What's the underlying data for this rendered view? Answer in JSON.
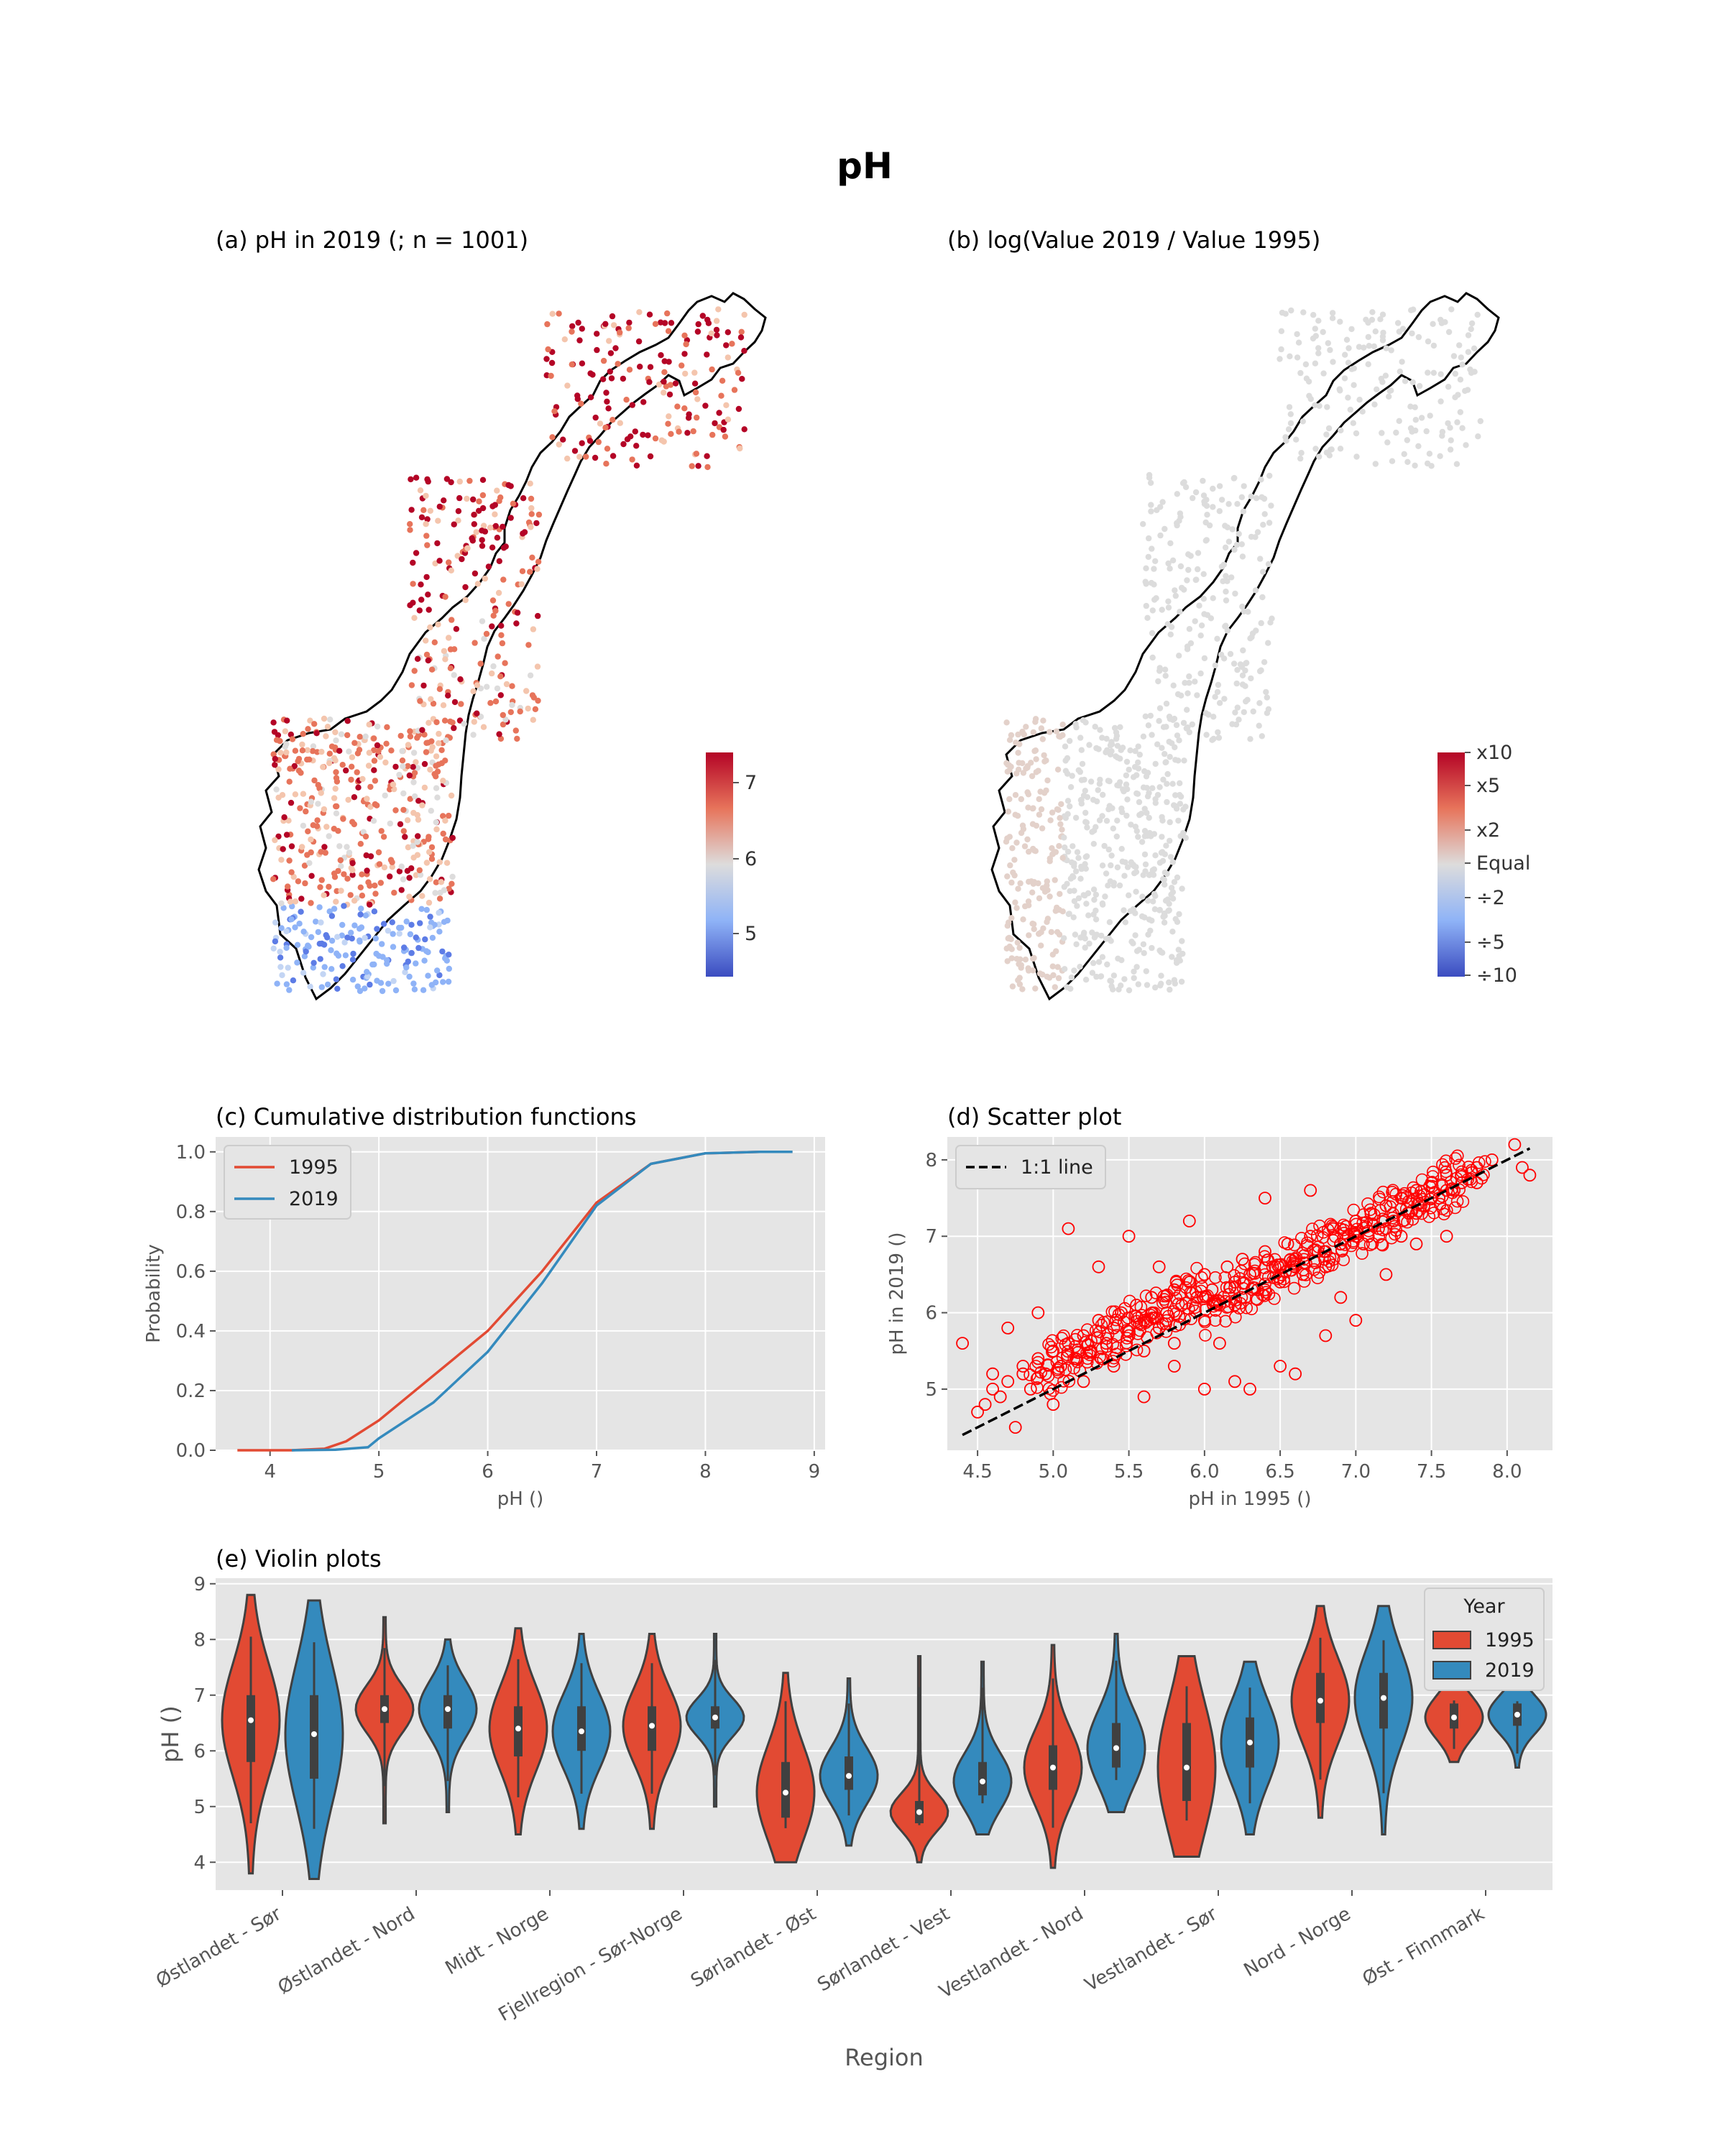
{
  "figure": {
    "title": "pH"
  },
  "panel_a": {
    "title": "(a) pH in 2019 (; n = 1001)",
    "colorbar": {
      "ticks": [
        "7",
        "6",
        "5"
      ],
      "range": [
        4.4,
        7.4
      ]
    }
  },
  "panel_b": {
    "title": "(b) log(Value 2019 / Value 1995)",
    "colorbar": {
      "ticks": [
        "x10",
        "x5",
        "x2",
        "Equal",
        "÷2",
        "÷5",
        "÷10"
      ]
    }
  },
  "chart_data": [
    {
      "id": "c",
      "type": "line",
      "title": "(c) Cumulative distribution functions",
      "xlabel": "pH ()",
      "ylabel": "Probability",
      "xlim": [
        3.5,
        9.1
      ],
      "ylim": [
        0.0,
        1.05
      ],
      "xticks": [
        "4",
        "5",
        "6",
        "7",
        "8",
        "9"
      ],
      "yticks": [
        "0.0",
        "0.2",
        "0.4",
        "0.6",
        "0.8",
        "1.0"
      ],
      "legend": {
        "position": "top-left",
        "entries": [
          "1995",
          "2019"
        ]
      },
      "series": [
        {
          "name": "1995",
          "color": "#e24a33",
          "x": [
            3.7,
            4.2,
            4.5,
            4.7,
            5.0,
            5.5,
            6.0,
            6.5,
            7.0,
            7.5,
            8.0,
            8.5,
            8.8
          ],
          "y": [
            0.0,
            0.0,
            0.005,
            0.03,
            0.1,
            0.25,
            0.4,
            0.6,
            0.83,
            0.96,
            0.995,
            1.0,
            1.0
          ]
        },
        {
          "name": "2019",
          "color": "#348abd",
          "x": [
            4.2,
            4.6,
            4.9,
            5.0,
            5.5,
            6.0,
            6.5,
            7.0,
            7.5,
            8.0,
            8.5,
            8.8
          ],
          "y": [
            0.0,
            0.002,
            0.01,
            0.04,
            0.16,
            0.33,
            0.56,
            0.82,
            0.96,
            0.995,
            1.0,
            1.0
          ]
        }
      ]
    },
    {
      "id": "d",
      "type": "scatter",
      "title": "(d) Scatter plot",
      "xlabel": "pH in 1995 ()",
      "ylabel": "pH in 2019 ()",
      "xlim": [
        4.3,
        8.3
      ],
      "ylim": [
        4.2,
        8.3
      ],
      "xticks": [
        "4.5",
        "5.0",
        "5.5",
        "6.0",
        "6.5",
        "7.0",
        "7.5",
        "8.0"
      ],
      "yticks": [
        "5",
        "6",
        "7",
        "8"
      ],
      "legend": {
        "position": "top-left",
        "entries": [
          "1:1 line"
        ]
      },
      "line_1to1": [
        4.4,
        8.15
      ],
      "point_color": "#ff0000",
      "points": [
        [
          4.4,
          5.6
        ],
        [
          4.5,
          4.7
        ],
        [
          4.55,
          4.8
        ],
        [
          4.6,
          5.2
        ],
        [
          4.65,
          4.9
        ],
        [
          4.7,
          5.1
        ],
        [
          4.75,
          4.5
        ],
        [
          4.8,
          5.3
        ],
        [
          4.85,
          5.0
        ],
        [
          4.9,
          5.4
        ],
        [
          4.95,
          5.2
        ],
        [
          5.0,
          5.5
        ],
        [
          5.0,
          4.8
        ],
        [
          5.05,
          5.3
        ],
        [
          5.1,
          5.6
        ],
        [
          5.15,
          5.4
        ],
        [
          5.2,
          5.7
        ],
        [
          5.25,
          5.5
        ],
        [
          5.3,
          5.9
        ],
        [
          5.35,
          5.6
        ],
        [
          5.4,
          5.8
        ],
        [
          5.45,
          6.0
        ],
        [
          5.5,
          5.7
        ],
        [
          5.55,
          6.1
        ],
        [
          5.6,
          5.9
        ],
        [
          5.65,
          6.2
        ],
        [
          5.7,
          5.8
        ],
        [
          5.75,
          6.0
        ],
        [
          5.8,
          6.3
        ],
        [
          5.85,
          6.1
        ],
        [
          5.9,
          6.4
        ],
        [
          5.95,
          6.2
        ],
        [
          6.0,
          6.5
        ],
        [
          6.05,
          6.3
        ],
        [
          6.1,
          6.1
        ],
        [
          6.15,
          6.6
        ],
        [
          6.2,
          6.4
        ],
        [
          6.25,
          6.7
        ],
        [
          6.3,
          6.5
        ],
        [
          6.35,
          6.3
        ],
        [
          6.4,
          6.8
        ],
        [
          6.45,
          6.6
        ],
        [
          6.5,
          6.4
        ],
        [
          6.55,
          6.9
        ],
        [
          6.6,
          6.7
        ],
        [
          6.65,
          6.5
        ],
        [
          6.7,
          7.0
        ],
        [
          6.75,
          6.8
        ],
        [
          6.8,
          6.6
        ],
        [
          6.85,
          7.1
        ],
        [
          6.9,
          6.9
        ],
        [
          6.95,
          7.0
        ],
        [
          7.0,
          7.2
        ],
        [
          7.05,
          6.9
        ],
        [
          7.1,
          7.3
        ],
        [
          7.15,
          7.1
        ],
        [
          7.2,
          7.4
        ],
        [
          7.25,
          7.2
        ],
        [
          7.3,
          7.5
        ],
        [
          7.35,
          7.3
        ],
        [
          7.4,
          7.6
        ],
        [
          7.45,
          7.4
        ],
        [
          7.5,
          7.7
        ],
        [
          7.55,
          7.5
        ],
        [
          7.6,
          7.8
        ],
        [
          7.65,
          7.6
        ],
        [
          7.7,
          7.7
        ],
        [
          7.8,
          7.9
        ],
        [
          7.9,
          8.0
        ],
        [
          8.05,
          8.2
        ],
        [
          8.1,
          7.9
        ],
        [
          8.15,
          7.8
        ],
        [
          5.1,
          7.1
        ],
        [
          5.5,
          7.0
        ],
        [
          5.7,
          6.6
        ],
        [
          6.0,
          5.0
        ],
        [
          6.2,
          5.1
        ],
        [
          6.3,
          5.0
        ],
        [
          6.5,
          5.3
        ],
        [
          6.8,
          5.7
        ],
        [
          7.0,
          5.9
        ],
        [
          6.6,
          5.2
        ],
        [
          5.9,
          7.2
        ],
        [
          6.4,
          7.5
        ],
        [
          4.7,
          5.8
        ],
        [
          4.9,
          6.0
        ],
        [
          5.6,
          4.9
        ],
        [
          5.3,
          6.6
        ],
        [
          6.7,
          7.6
        ],
        [
          7.2,
          6.5
        ],
        [
          7.4,
          6.9
        ],
        [
          7.6,
          7.0
        ],
        [
          5.8,
          5.3
        ],
        [
          6.1,
          5.6
        ],
        [
          6.9,
          6.2
        ],
        [
          7.3,
          7.0
        ],
        [
          4.6,
          5.0
        ],
        [
          4.8,
          5.2
        ],
        [
          5.2,
          5.1
        ],
        [
          5.4,
          5.3
        ],
        [
          5.6,
          5.5
        ],
        [
          5.8,
          5.6
        ],
        [
          6.0,
          5.9
        ],
        [
          6.2,
          6.1
        ],
        [
          6.4,
          6.3
        ],
        [
          6.6,
          6.6
        ],
        [
          6.8,
          6.8
        ],
        [
          7.0,
          7.0
        ],
        [
          7.2,
          7.1
        ],
        [
          7.4,
          7.3
        ],
        [
          7.6,
          7.6
        ],
        [
          7.8,
          7.7
        ]
      ]
    },
    {
      "id": "e",
      "type": "violin",
      "title": "(e) Violin plots",
      "xlabel": "Region",
      "ylabel": "pH ()",
      "ylim": [
        3.5,
        9.1
      ],
      "yticks": [
        "4",
        "5",
        "6",
        "7",
        "8",
        "9"
      ],
      "legend": {
        "position": "top-right",
        "title": "Year",
        "entries": [
          "1995",
          "2019"
        ]
      },
      "categories": [
        "Østlandet - Sør",
        "Østlandet - Nord",
        "Midt - Norge",
        "Fjellregion - Sør-Norge",
        "Sørlandet - Øst",
        "Sørlandet - Vest",
        "Vestlandet - Nord",
        "Vestlandet - Sør",
        "Nord - Norge",
        "Øst - Finnmark"
      ],
      "series": [
        {
          "name": "1995",
          "color": "#e24a33",
          "min": [
            3.8,
            4.7,
            4.5,
            4.6,
            4.0,
            4.0,
            3.9,
            4.1,
            4.8,
            5.8
          ],
          "max": [
            8.8,
            8.4,
            8.2,
            8.1,
            7.4,
            7.7,
            7.9,
            7.7,
            8.6,
            7.1
          ],
          "q1": [
            5.8,
            6.5,
            5.9,
            6.0,
            4.8,
            4.7,
            5.3,
            5.1,
            6.5,
            6.4
          ],
          "q3": [
            7.0,
            7.0,
            6.8,
            6.8,
            5.8,
            5.1,
            6.1,
            6.5,
            7.4,
            6.85
          ],
          "median": [
            6.55,
            6.75,
            6.4,
            6.45,
            5.25,
            4.9,
            5.7,
            5.7,
            6.9,
            6.6
          ]
        },
        {
          "name": "2019",
          "color": "#348abd",
          "min": [
            3.7,
            4.9,
            4.6,
            5.0,
            4.3,
            4.5,
            4.9,
            4.5,
            4.5,
            5.7
          ],
          "max": [
            8.7,
            8.0,
            8.1,
            8.1,
            7.3,
            7.6,
            8.1,
            7.6,
            8.6,
            7.1
          ],
          "q1": [
            5.5,
            6.4,
            6.0,
            6.4,
            5.3,
            5.2,
            5.7,
            5.7,
            6.4,
            6.45
          ],
          "q3": [
            7.0,
            7.0,
            6.8,
            6.8,
            5.9,
            5.8,
            6.5,
            6.6,
            7.4,
            6.85
          ],
          "median": [
            6.3,
            6.75,
            6.35,
            6.6,
            5.55,
            5.45,
            6.05,
            6.15,
            6.95,
            6.65
          ]
        }
      ]
    }
  ]
}
